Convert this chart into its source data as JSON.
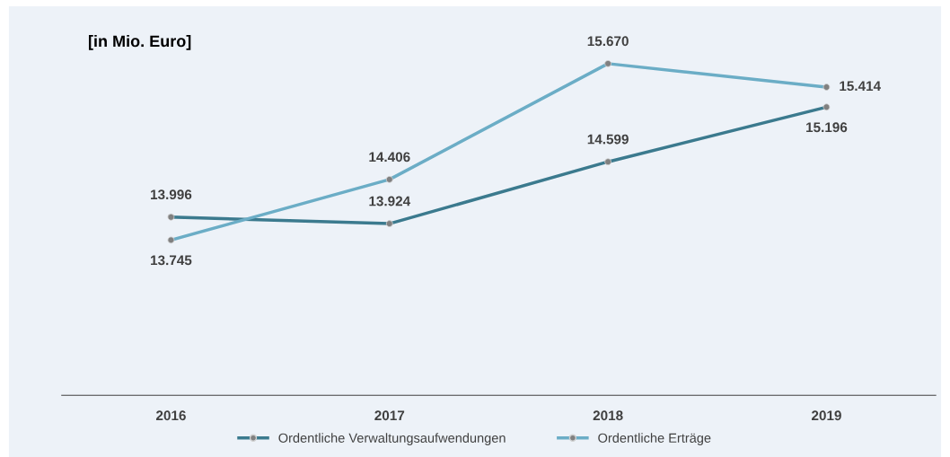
{
  "chart_data": {
    "type": "line",
    "title": "[in Mio. Euro]",
    "categories": [
      "2016",
      "2017",
      "2018",
      "2019"
    ],
    "series": [
      {
        "name": "Ordentliche Verwaltungsaufwendungen",
        "color": "#3b7a8e",
        "values": [
          13996,
          13924,
          14599,
          15196
        ],
        "value_labels": [
          "13.996",
          "13.924",
          "14.599",
          "15.196"
        ]
      },
      {
        "name": "Ordentliche Erträge",
        "color": "#6badc6",
        "values": [
          13745,
          14406,
          15670,
          15414
        ],
        "value_labels": [
          "13.745",
          "14.406",
          "15.670",
          "15.414"
        ]
      }
    ],
    "tick_labels": "x",
    "marker": "circle",
    "line_style": "solid",
    "grid": false,
    "legend": "bottom"
  }
}
